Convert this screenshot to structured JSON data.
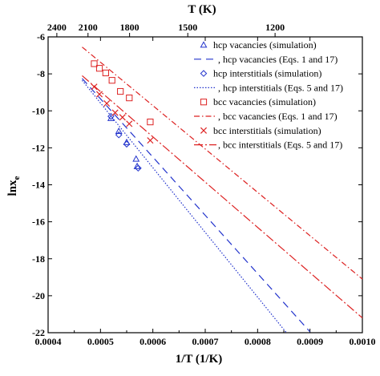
{
  "chart_data": {
    "type": "scatter",
    "title": "",
    "xlabel": "1/T (1/K)",
    "ylabel": "lnx",
    "ylabel_sub": "e",
    "top_axis_label": "T (K)",
    "xlim": [
      0.0004,
      0.001
    ],
    "ylim": [
      -22,
      -6
    ],
    "x_ticks": [
      "0.0004",
      "0.0005",
      "0.0006",
      "0.0007",
      "0.0008",
      "0.0009",
      "0.0010"
    ],
    "x_tick_values": [
      0.0004,
      0.0005,
      0.0006,
      0.0007,
      0.0008,
      0.0009,
      0.001
    ],
    "y_ticks": [
      "-6",
      "-8",
      "-10",
      "-12",
      "-14",
      "-16",
      "-18",
      "-20",
      "-22"
    ],
    "y_tick_values": [
      -6,
      -8,
      -10,
      -12,
      -14,
      -16,
      -18,
      -20,
      -22
    ],
    "top_ticks": [
      {
        "label": "2400",
        "T": 2400
      },
      {
        "label": "2100",
        "T": 2100
      },
      {
        "label": "1800",
        "T": 1800
      },
      {
        "label": "1500",
        "T": 1500
      },
      {
        "label": "1200",
        "T": 1200
      }
    ],
    "grid": false,
    "legend_position": "top-right",
    "series": [
      {
        "name": "hcp vacancies (simulation)",
        "kind": "points",
        "marker": "triangle",
        "color": "#2233cc",
        "points": [
          [
            0.00052,
            -10.4
          ],
          [
            0.000535,
            -11.1
          ],
          [
            0.00055,
            -11.7
          ],
          [
            0.000568,
            -12.6
          ],
          [
            0.00057,
            -13.0
          ]
        ]
      },
      {
        "name": ", hcp vacancies (Eqs. 1 and 17)",
        "kind": "line",
        "dash": "9,6",
        "color": "#2233cc",
        "points": [
          [
            0.000465,
            -8.25
          ],
          [
            0.0009,
            -21.95
          ]
        ]
      },
      {
        "name": "hcp interstitials (simulation)",
        "kind": "points",
        "marker": "diamond",
        "color": "#2233cc",
        "points": [
          [
            0.00052,
            -10.3
          ],
          [
            0.000535,
            -11.3
          ],
          [
            0.00055,
            -11.8
          ],
          [
            0.000572,
            -13.1
          ]
        ]
      },
      {
        "name": ", hcp interstitials (Eqs. 5 and 17)",
        "kind": "line",
        "dash": "1.5,2",
        "color": "#2233cc",
        "points": [
          [
            0.000465,
            -8.35
          ],
          [
            0.000855,
            -22.0
          ]
        ]
      },
      {
        "name": "bcc vacancies (simulation)",
        "kind": "points",
        "marker": "square",
        "color": "#dd2222",
        "points": [
          [
            0.000488,
            -7.45
          ],
          [
            0.000498,
            -7.7
          ],
          [
            0.00051,
            -7.95
          ],
          [
            0.000522,
            -8.35
          ],
          [
            0.000538,
            -8.95
          ],
          [
            0.000555,
            -9.3
          ],
          [
            0.000595,
            -10.6
          ]
        ]
      },
      {
        "name": ", bcc vacancies (Eqs. 1 and 17)",
        "kind": "line",
        "dash": "7,3,1.5,3",
        "color": "#dd2222",
        "points": [
          [
            0.000465,
            -6.55
          ],
          [
            0.001,
            -19.1
          ]
        ]
      },
      {
        "name": "bcc interstitials (simulation)",
        "kind": "points",
        "marker": "cross",
        "color": "#dd2222",
        "points": [
          [
            0.000488,
            -8.7
          ],
          [
            0.000498,
            -9.1
          ],
          [
            0.000512,
            -9.6
          ],
          [
            0.000528,
            -10.1
          ],
          [
            0.000542,
            -10.35
          ],
          [
            0.000555,
            -10.7
          ],
          [
            0.000595,
            -11.6
          ]
        ]
      },
      {
        "name": ", bcc interstitials (Eqs. 5 and 17)",
        "kind": "line",
        "dash": "11,3,2,3",
        "color": "#dd2222",
        "points": [
          [
            0.000465,
            -8.1
          ],
          [
            0.001,
            -21.2
          ]
        ]
      }
    ]
  }
}
